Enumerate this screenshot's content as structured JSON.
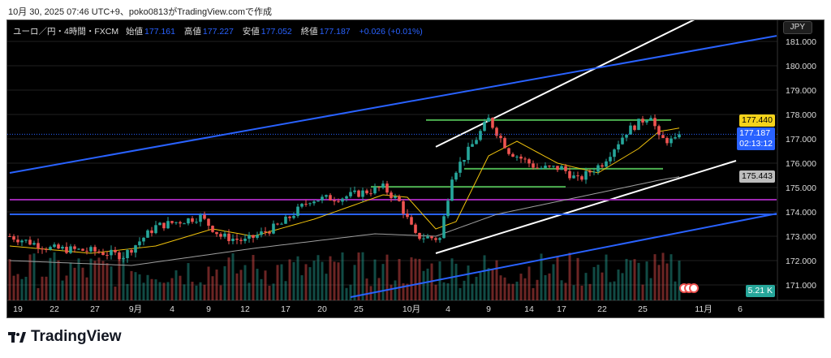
{
  "caption": "10月 30, 2025 07:46 UTC+9、poko0813がTradingView.comで作成",
  "legend": {
    "symbol": "ユーロ／円・4時間・FXCM",
    "open_label": "始値",
    "open": "177.161",
    "high_label": "高値",
    "high": "177.227",
    "low_label": "安値",
    "low": "177.052",
    "close_label": "終値",
    "close": "177.187",
    "change": "+0.026 (+0.01%)"
  },
  "currency_button": "JPY",
  "price_tags": {
    "ma_fast": "177.440",
    "last": "177.187",
    "countdown": "02:13:12",
    "ma_slow": "175.443",
    "volume": "5.21 K"
  },
  "logo_text": "TradingView",
  "colors": {
    "up": "#26a69a",
    "down": "#ef5350",
    "accent": "#2962ff",
    "ma_fast": "#f0c20c",
    "ma_slow": "#9e9e9e",
    "magenta": "#9c27b0",
    "green": "#4caf50"
  },
  "chart_data": {
    "type": "candlestick",
    "y_ticks": [
      "181.000",
      "180.000",
      "179.000",
      "178.000",
      "177.000",
      "176.000",
      "175.000",
      "174.000",
      "173.000",
      "172.000",
      "171.000"
    ],
    "ylim": [
      170.6,
      181.8
    ],
    "x_ticks": [
      {
        "label": "19",
        "bar": 2
      },
      {
        "label": "22",
        "bar": 11
      },
      {
        "label": "27",
        "bar": 21
      },
      {
        "label": "9月",
        "bar": 31
      },
      {
        "label": "4",
        "bar": 40
      },
      {
        "label": "9",
        "bar": 49
      },
      {
        "label": "12",
        "bar": 58
      },
      {
        "label": "17",
        "bar": 68
      },
      {
        "label": "20",
        "bar": 77
      },
      {
        "label": "25",
        "bar": 86
      },
      {
        "label": "10月",
        "bar": 99
      },
      {
        "label": "4",
        "bar": 108
      },
      {
        "label": "9",
        "bar": 118
      },
      {
        "label": "14",
        "bar": 128
      },
      {
        "label": "17",
        "bar": 136
      },
      {
        "label": "22",
        "bar": 146
      },
      {
        "label": "25",
        "bar": 156
      },
      {
        "label": "11月",
        "bar": 171
      },
      {
        "label": "6",
        "bar": 180
      }
    ],
    "bars": 166,
    "close_waypoints": [
      [
        0,
        173.0
      ],
      [
        10,
        172.5
      ],
      [
        20,
        172.4
      ],
      [
        28,
        172.2
      ],
      [
        36,
        173.4
      ],
      [
        47,
        173.8
      ],
      [
        52,
        173.0
      ],
      [
        58,
        172.8
      ],
      [
        67,
        173.5
      ],
      [
        74,
        174.5
      ],
      [
        82,
        174.6
      ],
      [
        92,
        175.0
      ],
      [
        96,
        174.4
      ],
      [
        100,
        173.0
      ],
      [
        106,
        172.9
      ],
      [
        109,
        175.5
      ],
      [
        113,
        176.5
      ],
      [
        118,
        177.8
      ],
      [
        123,
        176.5
      ],
      [
        130,
        175.8
      ],
      [
        136,
        175.8
      ],
      [
        140,
        175.3
      ],
      [
        146,
        176.0
      ],
      [
        152,
        177.3
      ],
      [
        158,
        178.0
      ],
      [
        160,
        177.0
      ],
      [
        164,
        176.9
      ],
      [
        165,
        177.187
      ]
    ],
    "ma_fast": [
      [
        0,
        172.6
      ],
      [
        20,
        172.3
      ],
      [
        36,
        172.6
      ],
      [
        50,
        173.3
      ],
      [
        60,
        173.0
      ],
      [
        75,
        173.7
      ],
      [
        92,
        174.7
      ],
      [
        98,
        174.6
      ],
      [
        105,
        173.3
      ],
      [
        110,
        173.6
      ],
      [
        118,
        176.3
      ],
      [
        125,
        176.9
      ],
      [
        135,
        176.0
      ],
      [
        145,
        175.6
      ],
      [
        155,
        176.6
      ],
      [
        160,
        177.3
      ],
      [
        165,
        177.44
      ]
    ],
    "ma_slow": [
      [
        0,
        172.0
      ],
      [
        30,
        171.8
      ],
      [
        60,
        172.5
      ],
      [
        90,
        173.1
      ],
      [
        105,
        173.0
      ],
      [
        120,
        173.9
      ],
      [
        140,
        174.6
      ],
      [
        160,
        175.3
      ],
      [
        165,
        175.443
      ]
    ],
    "lines": [
      {
        "name": "channel-upper",
        "color": "#ffffff",
        "p": [
          [
            105,
            176.67
          ],
          [
            170,
            182.0
          ]
        ]
      },
      {
        "name": "channel-lower",
        "color": "#ffffff",
        "p": [
          [
            105,
            172.3
          ],
          [
            179,
            176.1
          ]
        ]
      },
      {
        "name": "trend-upper",
        "color": "#2962ff",
        "p": [
          [
            0,
            175.6
          ],
          [
            189,
            181.23
          ]
        ]
      },
      {
        "name": "trend-lower",
        "color": "#2962ff",
        "p": [
          [
            84,
            170.5
          ],
          [
            189,
            173.93
          ]
        ]
      },
      {
        "name": "support-horizontal",
        "color": "#2962ff",
        "p": [
          [
            0,
            173.9
          ],
          [
            189,
            173.9
          ]
        ]
      },
      {
        "name": "magenta-level",
        "color": "#9c27b0",
        "p": [
          [
            0,
            174.5
          ],
          [
            189,
            174.5
          ]
        ]
      },
      {
        "name": "green-resistance",
        "color": "#4caf50",
        "p": [
          [
            102.6,
            177.77
          ],
          [
            163,
            177.77
          ]
        ]
      },
      {
        "name": "green-mid",
        "color": "#4caf50",
        "p": [
          [
            112,
            175.77
          ],
          [
            161,
            175.77
          ]
        ]
      },
      {
        "name": "green-low",
        "color": "#4caf50",
        "p": [
          [
            89,
            175.03
          ],
          [
            137,
            175.03
          ]
        ]
      }
    ]
  }
}
